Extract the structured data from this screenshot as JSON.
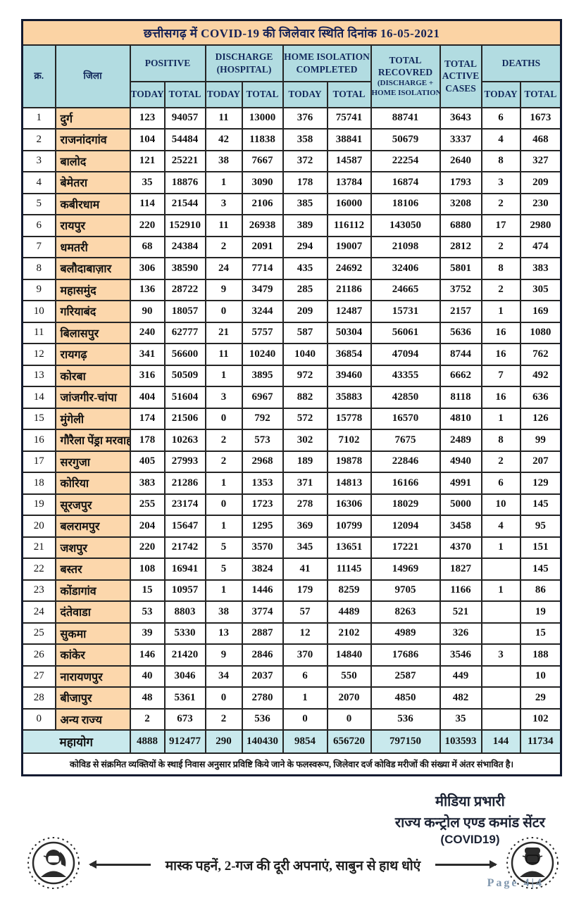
{
  "title": "छत्तीसगढ़ में COVID-19 की जिलेवार स्थिति दिनांक 16-05-2021",
  "colors": {
    "title_bg": "#fbd3a4",
    "header_bg": "#b2dce1",
    "district_bg": "#fcd7ac",
    "total_row_bg": "#c9e9ed",
    "border": "#121a30",
    "page_number": "#7f96ad"
  },
  "table": {
    "headers": {
      "serial": "क्र.",
      "district": "जिला",
      "positive": "POSITIVE",
      "discharge": [
        "DISCHARGE",
        "(HOSPITAL)"
      ],
      "home_isolation": [
        "HOME ISOLATION",
        "COMPLETED"
      ],
      "total_recovered": [
        "TOTAL",
        "RECOVRED",
        "(DISCHARGE +",
        "HOME ISOLATION)"
      ],
      "total_active": [
        "TOTAL",
        "ACTIVE",
        "CASES"
      ],
      "deaths": "DEATHS",
      "today": "TODAY",
      "total": "TOTAL"
    },
    "rows": [
      {
        "sn": "1",
        "district": "दुर्ग",
        "values": [
          "123",
          "94057",
          "11",
          "13000",
          "376",
          "75741",
          "88741",
          "3643",
          "6",
          "1673"
        ]
      },
      {
        "sn": "2",
        "district": "राजनांदगांव",
        "values": [
          "104",
          "54484",
          "42",
          "11838",
          "358",
          "38841",
          "50679",
          "3337",
          "4",
          "468"
        ]
      },
      {
        "sn": "3",
        "district": "बालोद",
        "values": [
          "121",
          "25221",
          "38",
          "7667",
          "372",
          "14587",
          "22254",
          "2640",
          "8",
          "327"
        ]
      },
      {
        "sn": "4",
        "district": "बेमेतरा",
        "values": [
          "35",
          "18876",
          "1",
          "3090",
          "178",
          "13784",
          "16874",
          "1793",
          "3",
          "209"
        ]
      },
      {
        "sn": "5",
        "district": "कबीरधाम",
        "values": [
          "114",
          "21544",
          "3",
          "2106",
          "385",
          "16000",
          "18106",
          "3208",
          "2",
          "230"
        ]
      },
      {
        "sn": "6",
        "district": "रायपुर",
        "values": [
          "220",
          "152910",
          "11",
          "26938",
          "389",
          "116112",
          "143050",
          "6880",
          "17",
          "2980"
        ]
      },
      {
        "sn": "7",
        "district": "धमतरी",
        "values": [
          "68",
          "24384",
          "2",
          "2091",
          "294",
          "19007",
          "21098",
          "2812",
          "2",
          "474"
        ]
      },
      {
        "sn": "8",
        "district": "बलौदाबाज़ार",
        "values": [
          "306",
          "38590",
          "24",
          "7714",
          "435",
          "24692",
          "32406",
          "5801",
          "8",
          "383"
        ]
      },
      {
        "sn": "9",
        "district": "महासमुंद",
        "values": [
          "136",
          "28722",
          "9",
          "3479",
          "285",
          "21186",
          "24665",
          "3752",
          "2",
          "305"
        ]
      },
      {
        "sn": "10",
        "district": "गरियाबंद",
        "values": [
          "90",
          "18057",
          "0",
          "3244",
          "209",
          "12487",
          "15731",
          "2157",
          "1",
          "169"
        ]
      },
      {
        "sn": "11",
        "district": "बिलासपुर",
        "values": [
          "240",
          "62777",
          "21",
          "5757",
          "587",
          "50304",
          "56061",
          "5636",
          "16",
          "1080"
        ]
      },
      {
        "sn": "12",
        "district": "रायगढ़",
        "values": [
          "341",
          "56600",
          "11",
          "10240",
          "1040",
          "36854",
          "47094",
          "8744",
          "16",
          "762"
        ]
      },
      {
        "sn": "13",
        "district": "कोरबा",
        "values": [
          "316",
          "50509",
          "1",
          "3895",
          "972",
          "39460",
          "43355",
          "6662",
          "7",
          "492"
        ]
      },
      {
        "sn": "14",
        "district": "जांजगीर-चांपा",
        "values": [
          "404",
          "51604",
          "3",
          "6967",
          "882",
          "35883",
          "42850",
          "8118",
          "16",
          "636"
        ]
      },
      {
        "sn": "15",
        "district": "मुंगेली",
        "values": [
          "174",
          "21506",
          "0",
          "792",
          "572",
          "15778",
          "16570",
          "4810",
          "1",
          "126"
        ]
      },
      {
        "sn": "16",
        "district": "गौरैला पेंड्रा मरवाही",
        "values": [
          "178",
          "10263",
          "2",
          "573",
          "302",
          "7102",
          "7675",
          "2489",
          "8",
          "99"
        ]
      },
      {
        "sn": "17",
        "district": "सरगुजा",
        "values": [
          "405",
          "27993",
          "2",
          "2968",
          "189",
          "19878",
          "22846",
          "4940",
          "2",
          "207"
        ]
      },
      {
        "sn": "18",
        "district": "कोरिया",
        "values": [
          "383",
          "21286",
          "1",
          "1353",
          "371",
          "14813",
          "16166",
          "4991",
          "6",
          "129"
        ]
      },
      {
        "sn": "19",
        "district": "सूरजपुर",
        "values": [
          "255",
          "23174",
          "0",
          "1723",
          "278",
          "16306",
          "18029",
          "5000",
          "10",
          "145"
        ]
      },
      {
        "sn": "20",
        "district": "बलरामपुर",
        "values": [
          "204",
          "15647",
          "1",
          "1295",
          "369",
          "10799",
          "12094",
          "3458",
          "4",
          "95"
        ]
      },
      {
        "sn": "21",
        "district": "जशपुर",
        "values": [
          "220",
          "21742",
          "5",
          "3570",
          "345",
          "13651",
          "17221",
          "4370",
          "1",
          "151"
        ]
      },
      {
        "sn": "22",
        "district": "बस्तर",
        "values": [
          "108",
          "16941",
          "5",
          "3824",
          "41",
          "11145",
          "14969",
          "1827",
          "",
          "145"
        ]
      },
      {
        "sn": "23",
        "district": "कोंडागांव",
        "values": [
          "15",
          "10957",
          "1",
          "1446",
          "179",
          "8259",
          "9705",
          "1166",
          "1",
          "86"
        ]
      },
      {
        "sn": "24",
        "district": "दंतेवाडा",
        "values": [
          "53",
          "8803",
          "38",
          "3774",
          "57",
          "4489",
          "8263",
          "521",
          "",
          "19"
        ]
      },
      {
        "sn": "25",
        "district": "सुकमा",
        "values": [
          "39",
          "5330",
          "13",
          "2887",
          "12",
          "2102",
          "4989",
          "326",
          "",
          "15"
        ]
      },
      {
        "sn": "26",
        "district": "कांकेर",
        "values": [
          "146",
          "21420",
          "9",
          "2846",
          "370",
          "14840",
          "17686",
          "3546",
          "3",
          "188"
        ]
      },
      {
        "sn": "27",
        "district": "नारायणपुर",
        "values": [
          "40",
          "3046",
          "34",
          "2037",
          "6",
          "550",
          "2587",
          "449",
          "",
          "10"
        ]
      },
      {
        "sn": "28",
        "district": "बीजापुर",
        "values": [
          "48",
          "5361",
          "0",
          "2780",
          "1",
          "2070",
          "4850",
          "482",
          "",
          "29"
        ]
      },
      {
        "sn": "0",
        "district": "अन्य राज्य",
        "values": [
          "2",
          "673",
          "2",
          "536",
          "0",
          "0",
          "536",
          "35",
          "",
          "102"
        ]
      }
    ],
    "total_row": {
      "label": "महायोग",
      "values": [
        "4888",
        "912477",
        "290",
        "140430",
        "9854",
        "656720",
        "797150",
        "103593",
        "144",
        "11734"
      ]
    },
    "note": "कोविड से संक्रमित व्यक्तियों के स्थाई निवास अनुसार प्रविष्टि किये जाने के फलस्वरूप, जिलेवार दर्ज कोविड मरीजों की संख्या में अंतर संभावित है।"
  },
  "footer": {
    "media_incharge": "मीडिया प्रभारी",
    "control_center": "राज्य कन्ट्रोल एण्ड कमांड सेंटर",
    "covid_label": "(COVID19)",
    "mask_message": "मास्क पहनें, 2-गज की दूरी अपनाएं, साबुन से हाथ धोएं",
    "page_label": "Page 4|4"
  }
}
